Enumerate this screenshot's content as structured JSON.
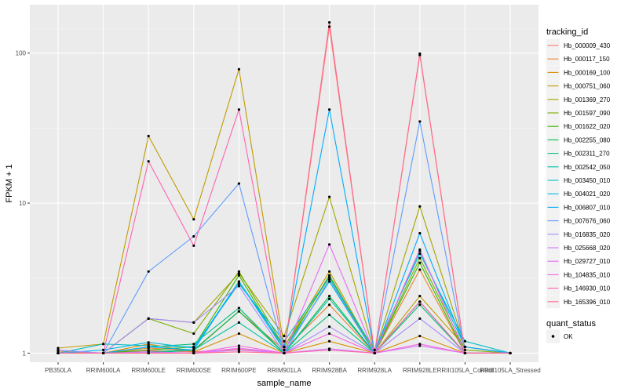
{
  "chart_data": {
    "type": "line",
    "xlabel": "sample_name",
    "ylabel": "FPKM + 1",
    "y_scale": "log10",
    "ylim": [
      0.87,
      210
    ],
    "y_ticks": [
      1,
      10,
      100
    ],
    "y_tick_labels": [
      "1",
      "10",
      "100"
    ],
    "grid": true,
    "legend_position": "right",
    "categories": [
      "PB350LA",
      "RRIM600LA",
      "RRIM600LE",
      "RRIM600SE",
      "RRIM600PE",
      "RRIM901LA",
      "RRIM928BA",
      "RRIM928LA",
      "RRIM928LE",
      "RRIII105LA_Control",
      "RRIII105LA_Stressed"
    ],
    "series": [
      {
        "name": "Hb_000009_430",
        "color": "#F8766D",
        "values": [
          1.0,
          1.0,
          1.04,
          1.02,
          1.06,
          1.0,
          150,
          1.0,
          97,
          1.0,
          1.0
        ]
      },
      {
        "name": "Hb_000117_150",
        "color": "#EA8331",
        "values": [
          1.03,
          1.0,
          1.08,
          1.04,
          1.9,
          1.05,
          2.1,
          1.0,
          3.6,
          1.0,
          1.0
        ]
      },
      {
        "name": "Hb_000169_100",
        "color": "#D89000",
        "values": [
          1.0,
          1.0,
          1.15,
          1.02,
          1.35,
          1.0,
          1.2,
          1.0,
          1.3,
          1.0,
          1.0
        ]
      },
      {
        "name": "Hb_000751_060",
        "color": "#C09B00",
        "values": [
          1.08,
          1.15,
          28,
          7.8,
          78,
          1.1,
          3.5,
          1.0,
          2.4,
          1.1,
          1.0
        ]
      },
      {
        "name": "Hb_001369_270",
        "color": "#A3A500",
        "values": [
          1.0,
          1.0,
          1.7,
          1.6,
          3.4,
          1.3,
          11,
          1.0,
          9.5,
          1.1,
          1.0
        ]
      },
      {
        "name": "Hb_001597_090",
        "color": "#7CAE00",
        "values": [
          1.0,
          1.0,
          1.7,
          1.35,
          3.5,
          1.1,
          3.2,
          1.0,
          4.3,
          1.05,
          1.0
        ]
      },
      {
        "name": "Hb_001622_020",
        "color": "#39B600",
        "values": [
          1.0,
          1.0,
          1.05,
          1.1,
          3.3,
          1.05,
          3.3,
          1.0,
          4.0,
          1.0,
          1.0
        ]
      },
      {
        "name": "Hb_002255_080",
        "color": "#00BB4E",
        "values": [
          1.0,
          1.0,
          1.02,
          1.05,
          1.9,
          1.0,
          2.4,
          1.0,
          2.2,
          1.0,
          1.0
        ]
      },
      {
        "name": "Hb_002311_270",
        "color": "#00BF7D",
        "values": [
          1.0,
          1.0,
          1.1,
          1.15,
          2.0,
          1.0,
          1.8,
          1.0,
          2.1,
          1.0,
          1.0
        ]
      },
      {
        "name": "Hb_002542_050",
        "color": "#00C1A3",
        "values": [
          1.0,
          1.0,
          1.0,
          1.05,
          1.6,
          1.0,
          2.3,
          1.0,
          2.2,
          1.0,
          1.0
        ]
      },
      {
        "name": "Hb_003450_010",
        "color": "#00BFC4",
        "values": [
          1.0,
          1.15,
          1.12,
          1.1,
          2.9,
          1.2,
          3.2,
          1.05,
          4.6,
          1.2,
          1.0
        ]
      },
      {
        "name": "Hb_004021_020",
        "color": "#00B8E5",
        "values": [
          1.0,
          1.05,
          1.18,
          1.08,
          3.0,
          1.05,
          3.0,
          1.0,
          4.8,
          1.1,
          1.0
        ]
      },
      {
        "name": "Hb_006807_010",
        "color": "#00ABFD",
        "values": [
          1.0,
          1.0,
          1.1,
          1.05,
          3.0,
          1.1,
          42,
          1.0,
          6.3,
          1.1,
          1.0
        ]
      },
      {
        "name": "Hb_007676_060",
        "color": "#619CFF",
        "values": [
          1.0,
          1.0,
          3.5,
          6.0,
          13.5,
          1.0,
          3.1,
          1.0,
          35,
          1.0,
          1.0
        ]
      },
      {
        "name": "Hb_016835_020",
        "color": "#A58AFF",
        "values": [
          1.05,
          1.0,
          1.7,
          1.6,
          2.8,
          1.0,
          1.5,
          1.0,
          1.7,
          1.0,
          1.0
        ]
      },
      {
        "name": "Hb_025668_020",
        "color": "#D078FF",
        "values": [
          1.0,
          1.0,
          1.02,
          1.0,
          1.05,
          1.0,
          1.07,
          1.0,
          1.12,
          1.0,
          1.0
        ]
      },
      {
        "name": "Hb_029727_010",
        "color": "#E96BF4",
        "values": [
          1.0,
          1.0,
          1.0,
          1.0,
          1.08,
          1.0,
          5.3,
          1.0,
          4.9,
          1.0,
          1.0
        ]
      },
      {
        "name": "Hb_104835_010",
        "color": "#F763E0",
        "values": [
          1.0,
          1.0,
          1.0,
          1.0,
          1.12,
          1.0,
          1.35,
          1.0,
          1.15,
          1.0,
          1.0
        ]
      },
      {
        "name": "Hb_146930_010",
        "color": "#FF64B0",
        "values": [
          1.0,
          1.0,
          19,
          5.2,
          42,
          1.0,
          1.05,
          1.0,
          2.2,
          1.0,
          1.0
        ]
      },
      {
        "name": "Hb_165396_010",
        "color": "#FF6C91",
        "values": [
          1.0,
          1.0,
          1.0,
          1.0,
          1.02,
          1.0,
          160,
          1.0,
          99,
          1.0,
          1.0
        ]
      }
    ]
  },
  "legend": {
    "title": "tracking_id",
    "status_title": "quant_status",
    "status_items": [
      {
        "label": "OK"
      }
    ]
  }
}
